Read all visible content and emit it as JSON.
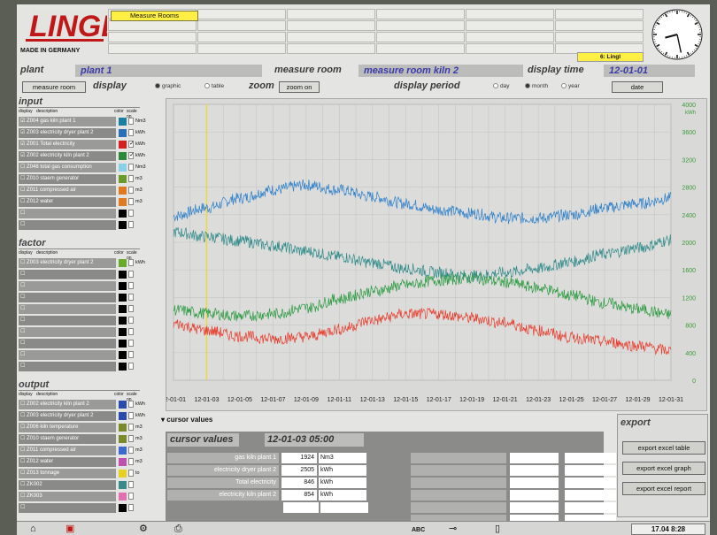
{
  "brand": {
    "logo": "LINGL",
    "made_in": "MADE IN GERMANY"
  },
  "header": {
    "tab_label": "Measure Rooms",
    "user": "6: Lingl"
  },
  "info": {
    "plant_label": "plant",
    "plant_value": "plant 1",
    "room_label": "measure room",
    "room_value": "measure room kiln 2",
    "time_label": "display time",
    "time_value": "12-01-01"
  },
  "controls": {
    "measure_room_btn": "measure room",
    "display_label": "display",
    "display_options": [
      "graphic",
      "table"
    ],
    "zoom_label": "zoom",
    "zoom_btn": "zoom on",
    "period_label": "display period",
    "period_options": [
      "day",
      "month",
      "year"
    ],
    "date_btn": "date"
  },
  "input": {
    "title": "input",
    "cols": [
      "display",
      "description",
      "color",
      "scale on"
    ],
    "rows": [
      {
        "checked": true,
        "desc": "Z004 gas kiln plant 1",
        "color": "#1a7fa0",
        "scale": false,
        "unit": "Nm3"
      },
      {
        "checked": true,
        "desc": "Z003 electricity dryer plant 2",
        "color": "#2a70b8",
        "scale": false,
        "unit": "kWh"
      },
      {
        "checked": true,
        "desc": "Z001 Total electricity",
        "color": "#d42020",
        "scale": true,
        "unit": "kWh"
      },
      {
        "checked": true,
        "desc": "Z002 electricity kiln plant 2",
        "color": "#2a8a3a",
        "scale": true,
        "unit": "kWh"
      },
      {
        "checked": false,
        "desc": "Z048 total gas consumption",
        "color": "#88d0e8",
        "scale": false,
        "unit": "Nm3"
      },
      {
        "checked": false,
        "desc": "Z010 staem generator",
        "color": "#6a9a2a",
        "scale": false,
        "unit": "m3"
      },
      {
        "checked": false,
        "desc": "Z011 compressed air",
        "color": "#e07a20",
        "scale": false,
        "unit": "m3"
      },
      {
        "checked": false,
        "desc": "Z012 water",
        "color": "#e07a20",
        "scale": false,
        "unit": "m3"
      },
      {
        "checked": false,
        "desc": "",
        "color": "#000000",
        "scale": false,
        "unit": ""
      },
      {
        "checked": false,
        "desc": "",
        "color": "#000000",
        "scale": false,
        "unit": ""
      }
    ]
  },
  "factor": {
    "title": "factor",
    "cols": [
      "display",
      "description",
      "color",
      "scale on"
    ],
    "rows": [
      {
        "checked": false,
        "desc": "Z003 electricity dryer plant 2",
        "color": "#6aaa2a",
        "scale": false,
        "unit": "kWh"
      },
      {
        "checked": false,
        "desc": "",
        "color": "#000000",
        "scale": false,
        "unit": ""
      },
      {
        "checked": false,
        "desc": "",
        "color": "#000000",
        "scale": false,
        "unit": ""
      },
      {
        "checked": false,
        "desc": "",
        "color": "#000000",
        "scale": false,
        "unit": ""
      },
      {
        "checked": false,
        "desc": "",
        "color": "#000000",
        "scale": false,
        "unit": ""
      },
      {
        "checked": false,
        "desc": "",
        "color": "#000000",
        "scale": false,
        "unit": ""
      },
      {
        "checked": false,
        "desc": "",
        "color": "#000000",
        "scale": false,
        "unit": ""
      },
      {
        "checked": false,
        "desc": "",
        "color": "#000000",
        "scale": false,
        "unit": ""
      },
      {
        "checked": false,
        "desc": "",
        "color": "#000000",
        "scale": false,
        "unit": ""
      },
      {
        "checked": false,
        "desc": "",
        "color": "#000000",
        "scale": false,
        "unit": ""
      }
    ]
  },
  "output": {
    "title": "output",
    "cols": [
      "display",
      "description",
      "color",
      "scale on"
    ],
    "rows": [
      {
        "checked": false,
        "desc": "Z002 electricity kiln plant 2",
        "color": "#2a4ab0",
        "scale": false,
        "unit": "kWh"
      },
      {
        "checked": false,
        "desc": "Z003 electricity dryer plant 2",
        "color": "#2a4ab0",
        "scale": false,
        "unit": "kWh"
      },
      {
        "checked": false,
        "desc": "Z006 kiln temperature",
        "color": "#7a8a2a",
        "scale": false,
        "unit": "m3"
      },
      {
        "checked": false,
        "desc": "Z010 staem generator",
        "color": "#7a8a2a",
        "scale": false,
        "unit": "m3"
      },
      {
        "checked": false,
        "desc": "Z011 compressed air",
        "color": "#3a6ad0",
        "scale": false,
        "unit": "m3"
      },
      {
        "checked": false,
        "desc": "Z012 water",
        "color": "#c050b0",
        "scale": false,
        "unit": "m3"
      },
      {
        "checked": false,
        "desc": "Z013 tonnage",
        "color": "#e8d020",
        "scale": false,
        "unit": "to"
      },
      {
        "checked": false,
        "desc": "ZK002",
        "color": "#3a8a8a",
        "scale": false,
        "unit": ""
      },
      {
        "checked": false,
        "desc": "ZK003",
        "color": "#e070b0",
        "scale": false,
        "unit": ""
      },
      {
        "checked": false,
        "desc": "",
        "color": "#000000",
        "scale": false,
        "unit": ""
      }
    ]
  },
  "chart_data": {
    "type": "line",
    "x_ticks": [
      "12-01-01",
      "12-01-03",
      "12-01-05",
      "12-01-07",
      "12-01-09",
      "12-01-11",
      "12-01-13",
      "12-01-15",
      "12-01-17",
      "12-01-19",
      "12-01-21",
      "12-01-23",
      "12-01-25",
      "12-01-27",
      "12-01-29",
      "12-01-31"
    ],
    "y_unit": "kWh",
    "y_ticks": [
      0,
      400,
      800,
      1200,
      1600,
      2000,
      2400,
      2800,
      3200,
      3600,
      4000
    ],
    "ylim": [
      0,
      4000
    ],
    "xlim": [
      1,
      31
    ],
    "cursor_x": 3,
    "grid": true,
    "series": [
      {
        "color": "#2c7fc9",
        "x": [
          1,
          3,
          5,
          7,
          9,
          11,
          13,
          15,
          17,
          19,
          21,
          23,
          25,
          27,
          29,
          31
        ],
        "values": [
          2380,
          2500,
          2640,
          2760,
          2830,
          2760,
          2660,
          2560,
          2470,
          2420,
          2350,
          2350,
          2400,
          2500,
          2560,
          2640
        ]
      },
      {
        "color": "#2e8a88",
        "x": [
          1,
          3,
          5,
          7,
          9,
          11,
          13,
          15,
          17,
          19,
          21,
          23,
          25,
          27,
          29,
          31
        ],
        "values": [
          2150,
          2080,
          2020,
          1950,
          1870,
          1790,
          1700,
          1620,
          1560,
          1510,
          1560,
          1620,
          1720,
          1830,
          1920,
          2030
        ]
      },
      {
        "color": "#2a9a40",
        "x": [
          1,
          3,
          5,
          7,
          9,
          11,
          13,
          15,
          17,
          19,
          21,
          23,
          25,
          27,
          29,
          31
        ],
        "values": [
          1020,
          970,
          930,
          960,
          1050,
          1180,
          1290,
          1380,
          1450,
          1480,
          1420,
          1340,
          1230,
          1120,
          1030,
          950
        ]
      },
      {
        "color": "#e83a2a",
        "x": [
          1,
          3,
          5,
          7,
          9,
          11,
          13,
          15,
          17,
          19,
          21,
          23,
          25,
          27,
          29,
          31
        ],
        "values": [
          820,
          720,
          640,
          600,
          630,
          740,
          870,
          960,
          960,
          900,
          830,
          720,
          620,
          560,
          500,
          430
        ]
      }
    ]
  },
  "cursor": {
    "header": "cursor values",
    "title": "cursor values",
    "time": "12-01-03 05:00",
    "rows": [
      {
        "name": "gas kiln plant 1",
        "value": "1924",
        "unit": "Nm3"
      },
      {
        "name": "electricity dryer plant 2",
        "value": "2505",
        "unit": "kWh"
      },
      {
        "name": "Total electricity",
        "value": "846",
        "unit": "kWh"
      },
      {
        "name": "electricity kiln plant 2",
        "value": "854",
        "unit": "kWh"
      }
    ]
  },
  "export": {
    "title": "export",
    "buttons": [
      "export excel table",
      "export excel graph",
      "export excel report"
    ]
  },
  "status": {
    "abc": "ABC",
    "time": "17.04  8:28"
  }
}
